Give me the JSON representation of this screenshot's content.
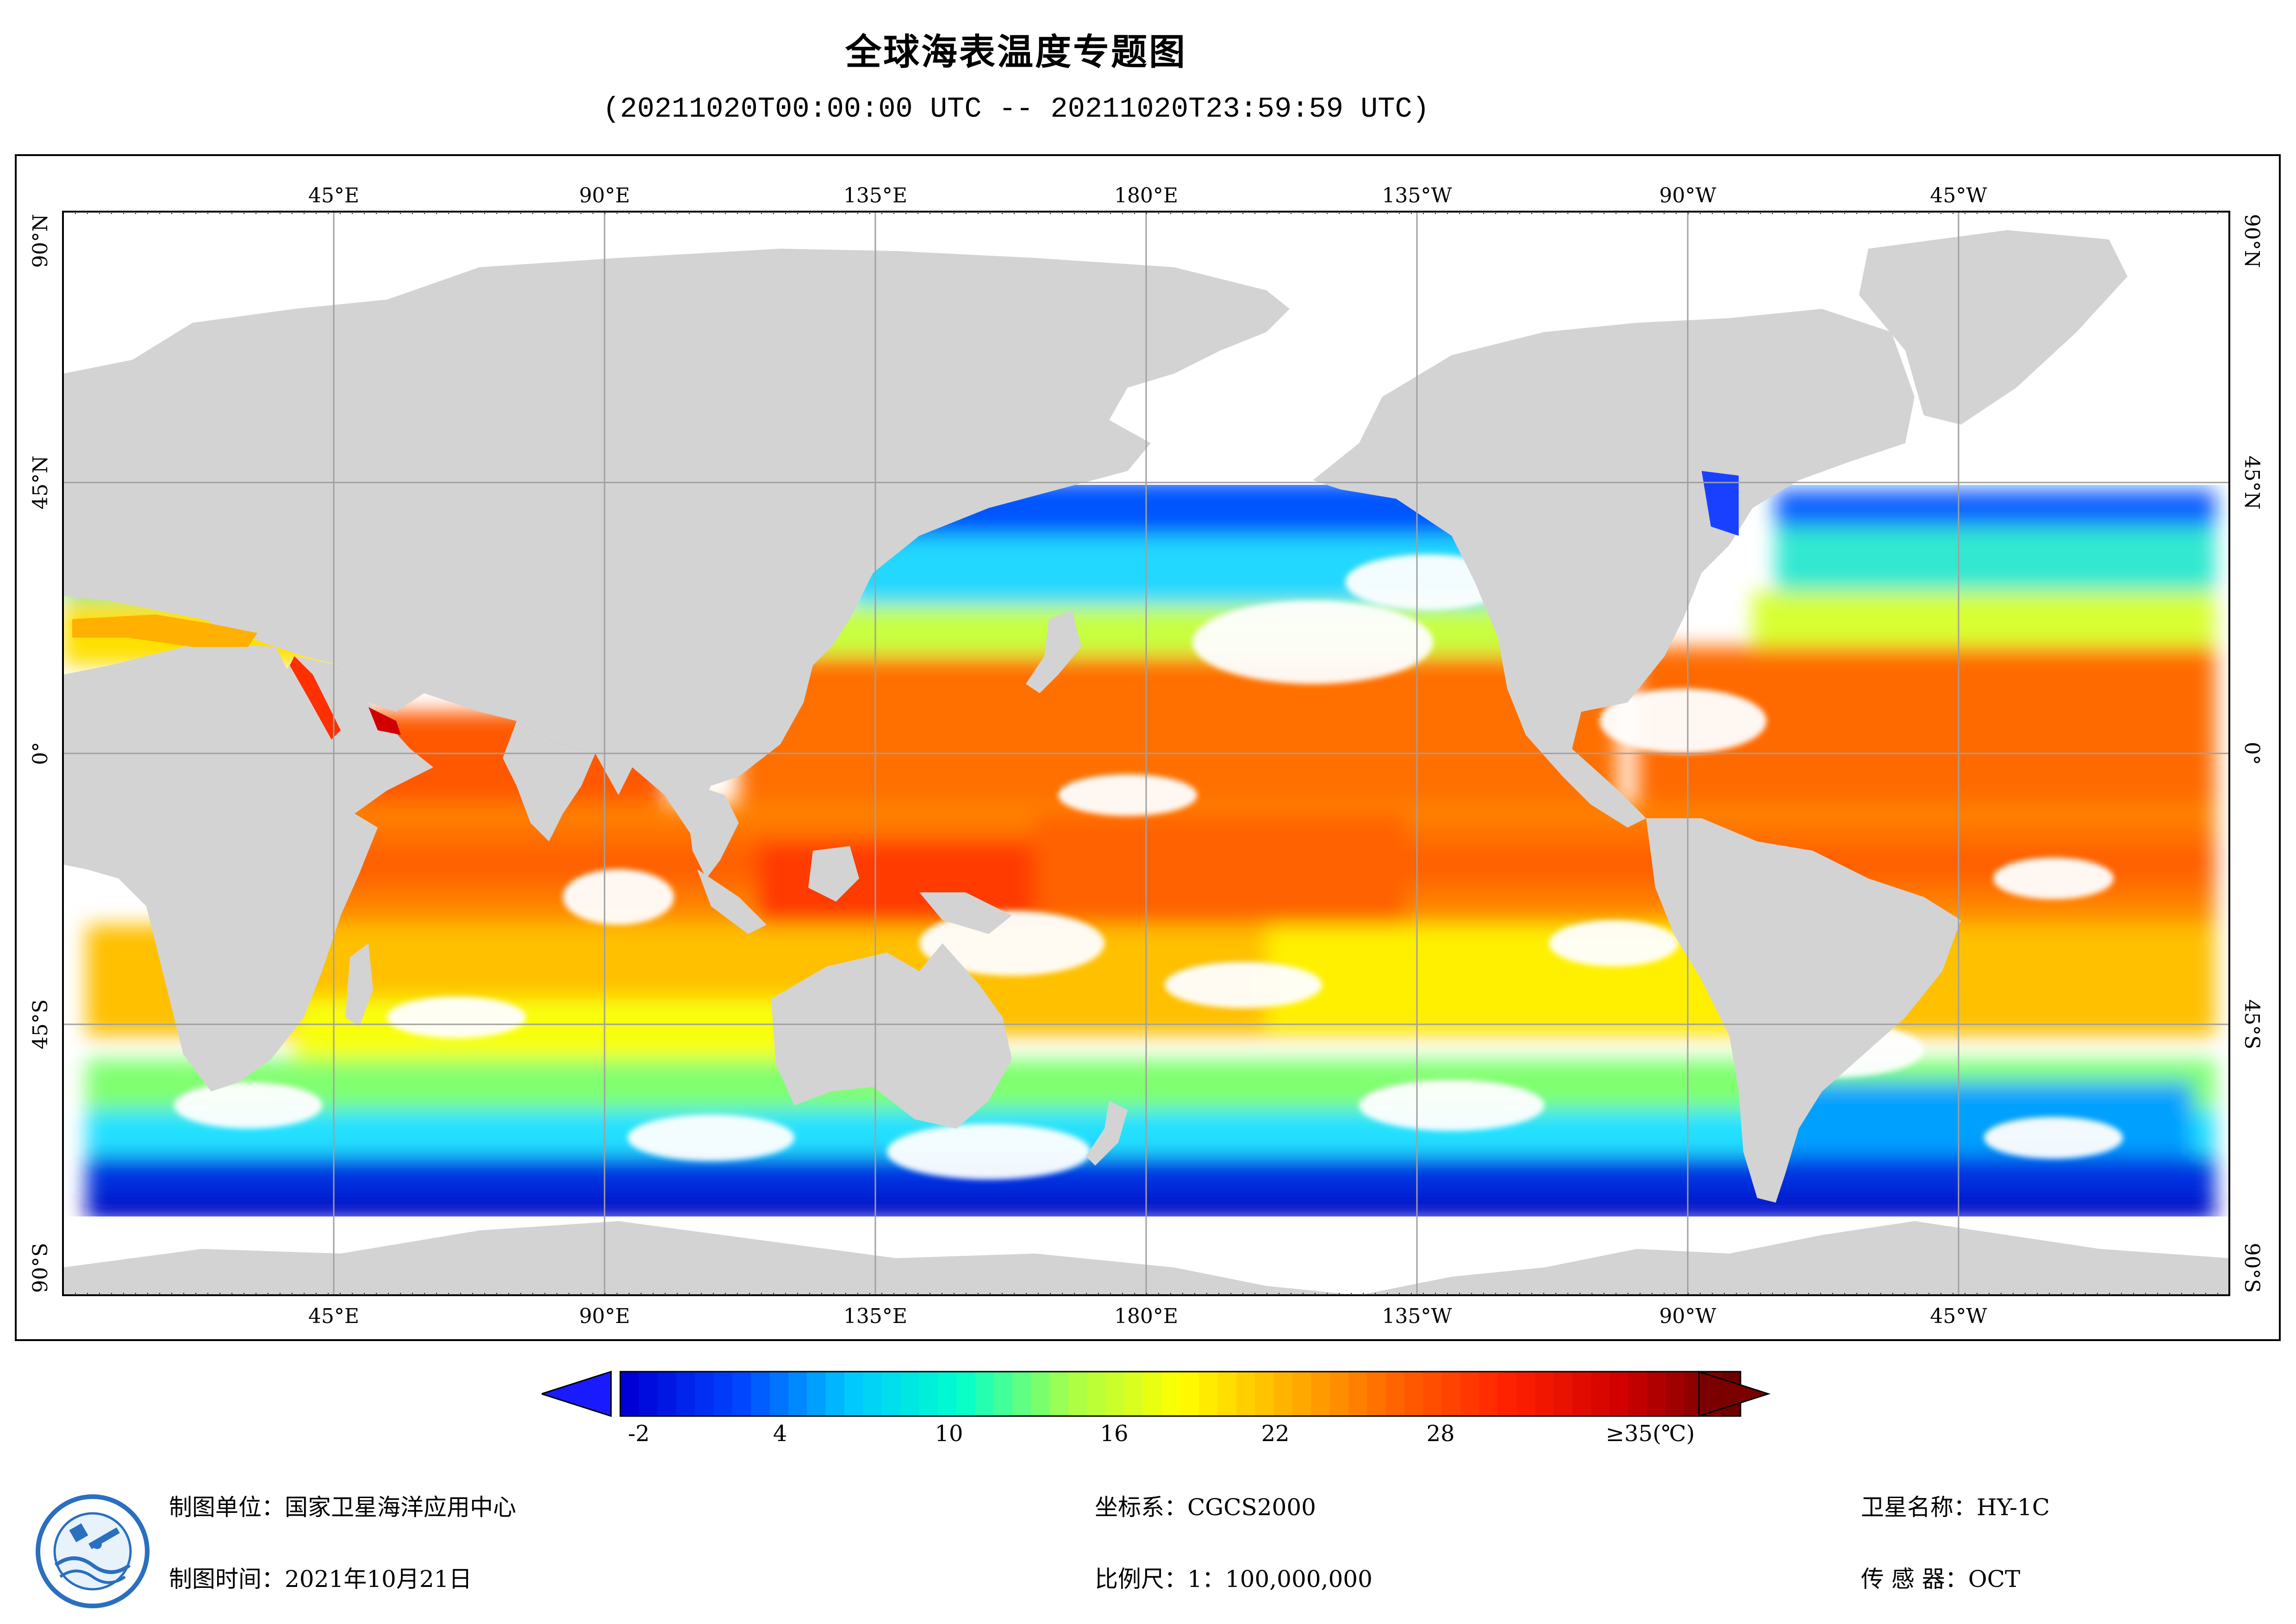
{
  "title": "全球海表温度专题图",
  "subtitle": "(20211020T00:00:00 UTC -- 20211020T23:59:59 UTC)",
  "map": {
    "lon_labels_top": [
      "45°E",
      "90°E",
      "135°E",
      "180°E",
      "135°W",
      "90°W",
      "45°W"
    ],
    "lon_labels_bottom": [
      "45°E",
      "90°E",
      "135°E",
      "180°E",
      "135°W",
      "90°W",
      "45°W"
    ],
    "lat_labels": [
      "90°N",
      "45°N",
      "0°",
      "45°S",
      "90°S"
    ],
    "lon_range": [
      20,
      380
    ],
    "lat_range": [
      -90,
      90
    ],
    "projection": "equirectangular"
  },
  "colorbar": {
    "min": -5,
    "max": 35,
    "unit": "(℃)",
    "tick_labels": [
      "-2",
      "4",
      "10",
      "16",
      "22",
      "28",
      "≥35(℃)"
    ],
    "tick_values": [
      -2,
      4,
      10,
      16,
      22,
      28,
      35
    ],
    "colors": [
      "#0000d6",
      "#0044ff",
      "#00c8ff",
      "#00ffcc",
      "#a8ff48",
      "#ffff00",
      "#ffb000",
      "#ff6000",
      "#ff2000",
      "#d00000",
      "#6e0000"
    ],
    "under_color": "#1a1aff",
    "over_color": "#7a0000"
  },
  "footer": {
    "org": "制图单位：国家卫星海洋应用中心",
    "date": "制图时间：2021年10月21日",
    "crs": "坐标系：CGCS2000",
    "scale": "比例尺：1：100,000,000",
    "satellite": "卫星名称：HY-1C",
    "sensor": "传 感 器：OCT"
  },
  "colors": {
    "land": "#d3d3d4",
    "cloud": "#ffffff",
    "grid": "#a0a0a0",
    "frame": "#000000"
  }
}
